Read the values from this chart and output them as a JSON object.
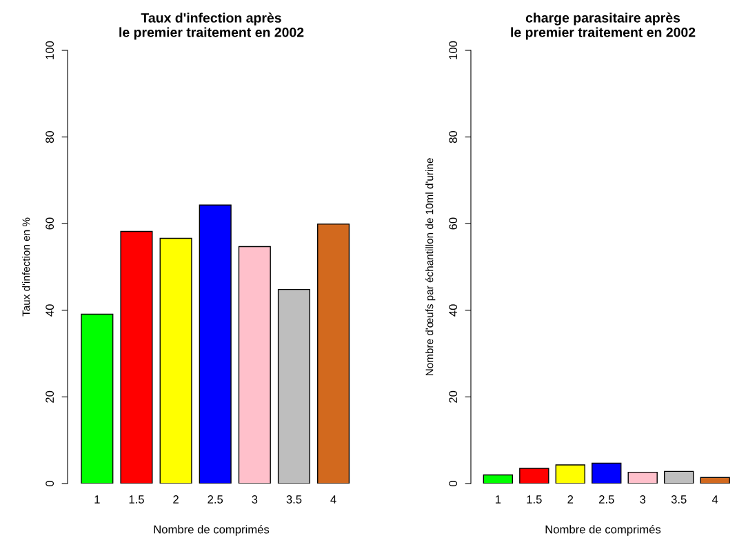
{
  "chart_data": [
    {
      "type": "bar",
      "title": "Taux d'infection après\nle premier traitement en 2002",
      "xlabel": "Nombre de comprimés",
      "ylabel": "Taux d'infection en %",
      "categories": [
        "1",
        "1.5",
        "2",
        "2.5",
        "3",
        "3.5",
        "4"
      ],
      "values": [
        39.1,
        58.2,
        56.6,
        64.3,
        54.7,
        44.8,
        59.9
      ],
      "colors": [
        "#00ff00",
        "#ff0000",
        "#ffff00",
        "#0000ff",
        "#ffc0cb",
        "#bebebe",
        "#d2691e"
      ],
      "ylim": [
        0,
        100
      ],
      "yticks": [
        0,
        20,
        40,
        60,
        80,
        100
      ],
      "grid": false
    },
    {
      "type": "bar",
      "title": "charge parasitaire après\nle premier traitement en 2002",
      "xlabel": "Nombre de comprimés",
      "ylabel": "Nombre d'œufs par échantillon de 10ml d'urine",
      "categories": [
        "1",
        "1.5",
        "2",
        "2.5",
        "3",
        "3.5",
        "4"
      ],
      "values": [
        2.0,
        3.5,
        4.3,
        4.7,
        2.6,
        2.8,
        1.4
      ],
      "colors": [
        "#00ff00",
        "#ff0000",
        "#ffff00",
        "#0000ff",
        "#ffc0cb",
        "#bebebe",
        "#d2691e"
      ],
      "ylim": [
        0,
        100
      ],
      "yticks": [
        0,
        20,
        40,
        60,
        80,
        100
      ],
      "grid": false
    }
  ]
}
